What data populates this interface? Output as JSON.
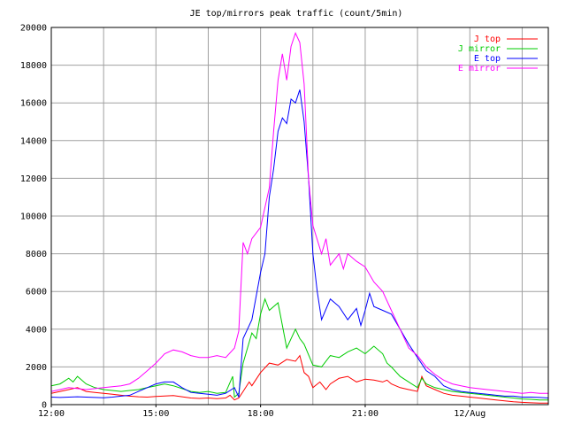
{
  "chart_data": {
    "type": "line",
    "title": "JE top/mirrors peak traffic (count/5min)",
    "xlabel": "",
    "ylabel": "",
    "xlim": [
      0,
      57
    ],
    "ylim": [
      0,
      20000
    ],
    "yticks": [
      0,
      2000,
      4000,
      6000,
      8000,
      10000,
      12000,
      14000,
      16000,
      18000,
      20000
    ],
    "xticks": [
      {
        "x": 0,
        "label": "12:00"
      },
      {
        "x": 12,
        "label": "15:00"
      },
      {
        "x": 24,
        "label": "18:00"
      },
      {
        "x": 36,
        "label": "21:00"
      },
      {
        "x": 48,
        "label": "12/Aug"
      }
    ],
    "grid": true,
    "legend_position": "top-right",
    "series": [
      {
        "name": "J top",
        "color": "#ff0000",
        "points": [
          [
            0,
            600
          ],
          [
            1,
            700
          ],
          [
            2,
            800
          ],
          [
            3,
            900
          ],
          [
            4,
            700
          ],
          [
            5,
            650
          ],
          [
            6,
            600
          ],
          [
            7,
            550
          ],
          [
            8,
            500
          ],
          [
            9,
            450
          ],
          [
            10,
            420
          ],
          [
            11,
            400
          ],
          [
            12,
            430
          ],
          [
            13,
            460
          ],
          [
            14,
            480
          ],
          [
            15,
            420
          ],
          [
            16,
            350
          ],
          [
            17,
            330
          ],
          [
            18,
            350
          ],
          [
            19,
            320
          ],
          [
            20,
            350
          ],
          [
            20.5,
            500
          ],
          [
            21,
            250
          ],
          [
            21.5,
            350
          ],
          [
            22,
            700
          ],
          [
            22.7,
            1200
          ],
          [
            23,
            1000
          ],
          [
            24,
            1700
          ],
          [
            25,
            2200
          ],
          [
            26,
            2100
          ],
          [
            27,
            2400
          ],
          [
            28,
            2300
          ],
          [
            28.5,
            2600
          ],
          [
            29,
            1700
          ],
          [
            29.5,
            1500
          ],
          [
            30,
            900
          ],
          [
            30.8,
            1200
          ],
          [
            31.5,
            800
          ],
          [
            32,
            1100
          ],
          [
            33,
            1400
          ],
          [
            34,
            1500
          ],
          [
            35,
            1200
          ],
          [
            36,
            1350
          ],
          [
            37,
            1300
          ],
          [
            38,
            1200
          ],
          [
            38.5,
            1300
          ],
          [
            39,
            1100
          ],
          [
            40,
            900
          ],
          [
            41,
            800
          ],
          [
            42,
            700
          ],
          [
            42.5,
            1500
          ],
          [
            43,
            1000
          ],
          [
            44,
            800
          ],
          [
            45,
            600
          ],
          [
            46,
            500
          ],
          [
            47,
            450
          ],
          [
            48,
            400
          ],
          [
            49,
            350
          ],
          [
            50,
            300
          ],
          [
            51,
            250
          ],
          [
            52,
            200
          ],
          [
            53,
            150
          ],
          [
            54,
            120
          ],
          [
            55,
            100
          ],
          [
            56,
            80
          ],
          [
            57,
            80
          ]
        ]
      },
      {
        "name": "J mirror",
        "color": "#00cc00",
        "points": [
          [
            0,
            1000
          ],
          [
            1,
            1100
          ],
          [
            2,
            1400
          ],
          [
            2.5,
            1200
          ],
          [
            3,
            1500
          ],
          [
            4,
            1100
          ],
          [
            5,
            900
          ],
          [
            6,
            800
          ],
          [
            7,
            750
          ],
          [
            8,
            700
          ],
          [
            9,
            750
          ],
          [
            10,
            800
          ],
          [
            11,
            900
          ],
          [
            12,
            1000
          ],
          [
            13,
            1100
          ],
          [
            14,
            1000
          ],
          [
            15,
            850
          ],
          [
            16,
            700
          ],
          [
            17,
            650
          ],
          [
            18,
            700
          ],
          [
            19,
            600
          ],
          [
            20,
            650
          ],
          [
            20.8,
            1500
          ],
          [
            21,
            400
          ],
          [
            21.5,
            600
          ],
          [
            22,
            2200
          ],
          [
            23,
            3800
          ],
          [
            23.5,
            3500
          ],
          [
            24,
            4800
          ],
          [
            24.5,
            5600
          ],
          [
            25,
            5000
          ],
          [
            26,
            5400
          ],
          [
            26.5,
            4200
          ],
          [
            27,
            3000
          ],
          [
            28,
            4000
          ],
          [
            28.5,
            3500
          ],
          [
            29,
            3200
          ],
          [
            30,
            2100
          ],
          [
            31,
            2000
          ],
          [
            32,
            2600
          ],
          [
            33,
            2500
          ],
          [
            34,
            2800
          ],
          [
            35,
            3000
          ],
          [
            36,
            2700
          ],
          [
            37,
            3100
          ],
          [
            38,
            2700
          ],
          [
            38.5,
            2200
          ],
          [
            39,
            2000
          ],
          [
            40,
            1500
          ],
          [
            41,
            1200
          ],
          [
            42,
            900
          ],
          [
            42.5,
            1400
          ],
          [
            43,
            1100
          ],
          [
            44,
            900
          ],
          [
            45,
            800
          ],
          [
            46,
            700
          ],
          [
            47,
            650
          ],
          [
            48,
            600
          ],
          [
            49,
            550
          ],
          [
            50,
            500
          ],
          [
            51,
            450
          ],
          [
            52,
            400
          ],
          [
            53,
            350
          ],
          [
            54,
            300
          ],
          [
            55,
            280
          ],
          [
            56,
            250
          ],
          [
            57,
            250
          ]
        ]
      },
      {
        "name": "E top",
        "color": "#0000ff",
        "points": [
          [
            0,
            400
          ],
          [
            1,
            380
          ],
          [
            2,
            400
          ],
          [
            3,
            420
          ],
          [
            4,
            400
          ],
          [
            5,
            380
          ],
          [
            6,
            360
          ],
          [
            7,
            400
          ],
          [
            8,
            450
          ],
          [
            9,
            500
          ],
          [
            10,
            700
          ],
          [
            11,
            900
          ],
          [
            12,
            1100
          ],
          [
            13,
            1200
          ],
          [
            14,
            1200
          ],
          [
            15,
            900
          ],
          [
            16,
            650
          ],
          [
            17,
            600
          ],
          [
            18,
            550
          ],
          [
            19,
            500
          ],
          [
            20,
            600
          ],
          [
            21,
            900
          ],
          [
            21.5,
            400
          ],
          [
            22,
            3500
          ],
          [
            23,
            4500
          ],
          [
            24,
            7000
          ],
          [
            24.5,
            8000
          ],
          [
            25,
            11000
          ],
          [
            25.5,
            12500
          ],
          [
            26,
            14500
          ],
          [
            26.5,
            15200
          ],
          [
            27,
            14900
          ],
          [
            27.5,
            16200
          ],
          [
            28,
            16000
          ],
          [
            28.5,
            16700
          ],
          [
            29,
            15000
          ],
          [
            29.5,
            12000
          ],
          [
            30,
            8000
          ],
          [
            30.5,
            6000
          ],
          [
            31,
            4500
          ],
          [
            32,
            5600
          ],
          [
            33,
            5200
          ],
          [
            34,
            4500
          ],
          [
            35,
            5100
          ],
          [
            35.5,
            4200
          ],
          [
            36,
            5000
          ],
          [
            36.5,
            5900
          ],
          [
            37,
            5200
          ],
          [
            38,
            5000
          ],
          [
            39,
            4800
          ],
          [
            40,
            4000
          ],
          [
            41,
            3200
          ],
          [
            42,
            2500
          ],
          [
            43,
            1800
          ],
          [
            44,
            1500
          ],
          [
            45,
            1000
          ],
          [
            46,
            800
          ],
          [
            47,
            700
          ],
          [
            48,
            650
          ],
          [
            49,
            600
          ],
          [
            50,
            550
          ],
          [
            51,
            500
          ],
          [
            52,
            450
          ],
          [
            53,
            450
          ],
          [
            54,
            400
          ],
          [
            55,
            400
          ],
          [
            56,
            380
          ],
          [
            57,
            350
          ]
        ]
      },
      {
        "name": "E mirror",
        "color": "#ff00ff",
        "points": [
          [
            0,
            700
          ],
          [
            1,
            800
          ],
          [
            2,
            900
          ],
          [
            3,
            850
          ],
          [
            4,
            800
          ],
          [
            5,
            850
          ],
          [
            6,
            900
          ],
          [
            7,
            950
          ],
          [
            8,
            1000
          ],
          [
            9,
            1100
          ],
          [
            10,
            1400
          ],
          [
            11,
            1800
          ],
          [
            12,
            2200
          ],
          [
            13,
            2700
          ],
          [
            14,
            2900
          ],
          [
            15,
            2800
          ],
          [
            16,
            2600
          ],
          [
            17,
            2500
          ],
          [
            18,
            2500
          ],
          [
            19,
            2600
          ],
          [
            20,
            2500
          ],
          [
            21,
            3000
          ],
          [
            21.5,
            3900
          ],
          [
            22,
            8600
          ],
          [
            22.5,
            8000
          ],
          [
            23,
            8800
          ],
          [
            24,
            9400
          ],
          [
            25,
            11500
          ],
          [
            25.5,
            14500
          ],
          [
            26,
            17200
          ],
          [
            26.5,
            18600
          ],
          [
            27,
            17200
          ],
          [
            27.5,
            19000
          ],
          [
            28,
            19700
          ],
          [
            28.5,
            19200
          ],
          [
            29,
            17000
          ],
          [
            29.5,
            12000
          ],
          [
            30,
            9500
          ],
          [
            31,
            8000
          ],
          [
            31.5,
            8800
          ],
          [
            32,
            7400
          ],
          [
            33,
            8000
          ],
          [
            33.5,
            7200
          ],
          [
            34,
            8000
          ],
          [
            35,
            7600
          ],
          [
            36,
            7300
          ],
          [
            37,
            6500
          ],
          [
            38,
            6000
          ],
          [
            39,
            5000
          ],
          [
            40,
            4000
          ],
          [
            41,
            3000
          ],
          [
            42,
            2600
          ],
          [
            43,
            2000
          ],
          [
            44,
            1600
          ],
          [
            45,
            1300
          ],
          [
            46,
            1100
          ],
          [
            47,
            1000
          ],
          [
            48,
            900
          ],
          [
            49,
            850
          ],
          [
            50,
            800
          ],
          [
            51,
            750
          ],
          [
            52,
            700
          ],
          [
            53,
            650
          ],
          [
            54,
            600
          ],
          [
            55,
            650
          ],
          [
            56,
            600
          ],
          [
            57,
            600
          ]
        ]
      }
    ]
  }
}
